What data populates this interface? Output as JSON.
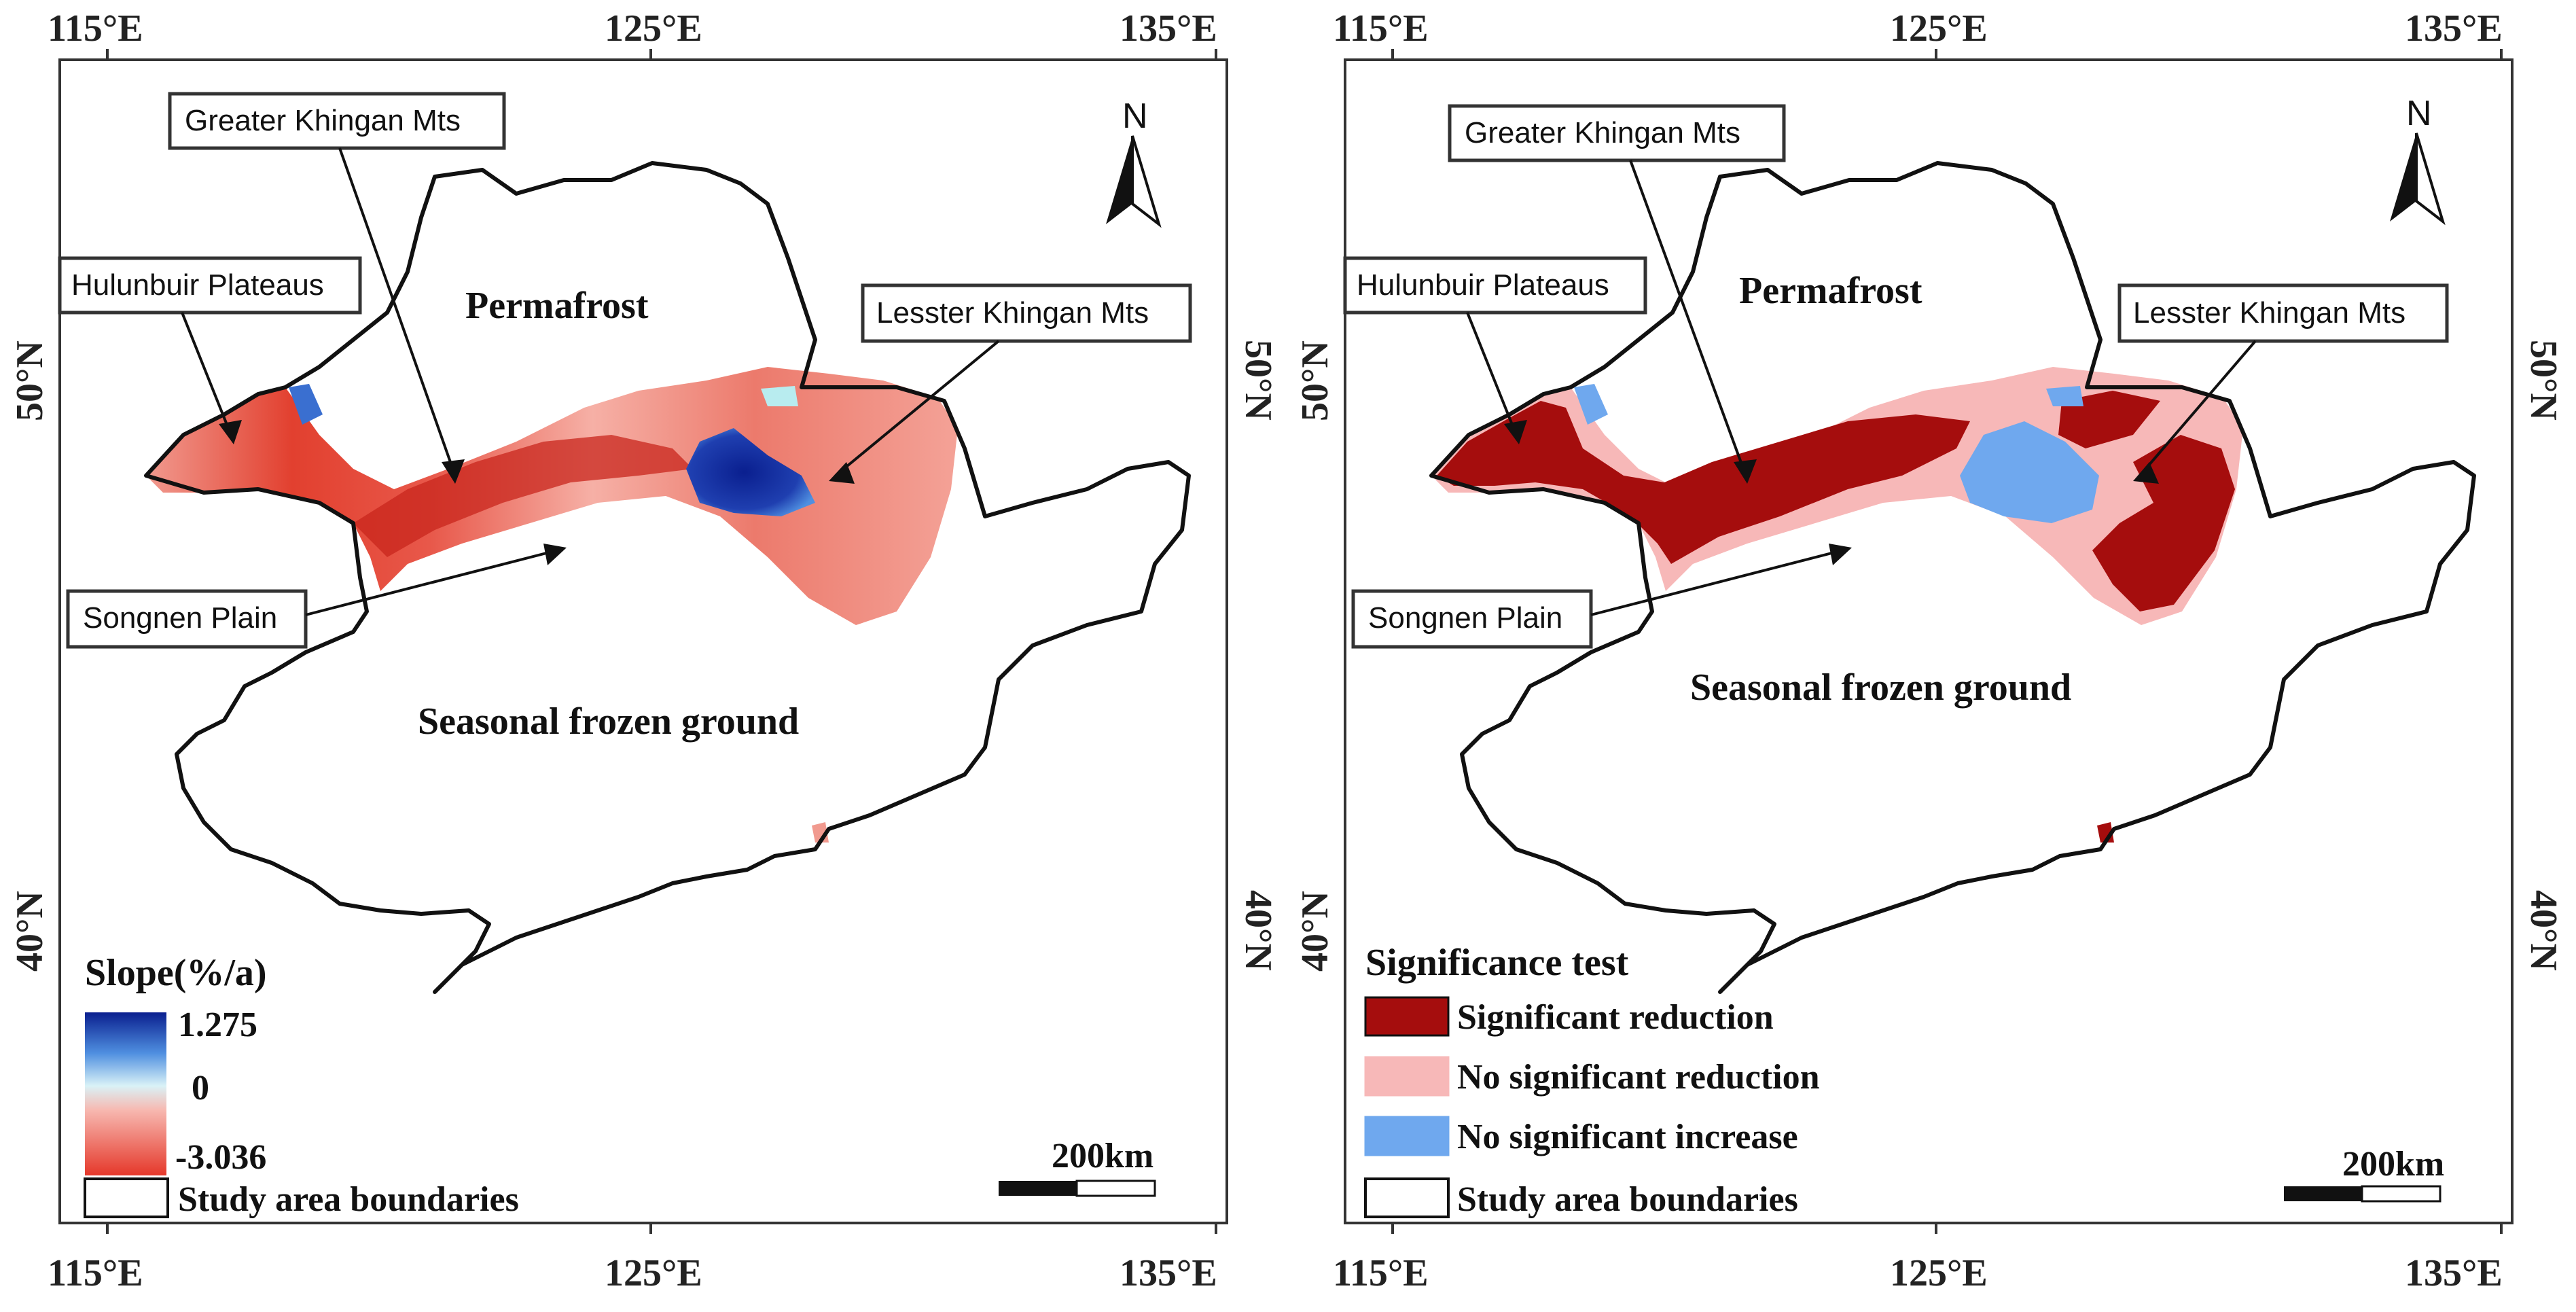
{
  "maps": [
    {
      "id": "slope",
      "ticks": {
        "top": [
          "115°E",
          "125°E",
          "135°E"
        ],
        "bottom": [
          "115°E",
          "125°E",
          "135°E"
        ],
        "left": [
          "50°N",
          "40°N"
        ],
        "right": [
          "50°N",
          "40°N"
        ]
      },
      "callouts": {
        "greater_khingan": "Greater Khingan Mts",
        "hulunbuir": "Hulunbuir Plateaus",
        "lesster_khingan": "Lesster Khingan Mts",
        "songnen": "Songnen Plain"
      },
      "regions": {
        "permafrost": "Permafrost",
        "seasonal": "Seasonal frozen ground"
      },
      "north_label": "N",
      "legend": {
        "title": "Slope(%/a)",
        "max_label": "1.275",
        "mid_label": "0",
        "min_label": "-3.036",
        "max_value": 1.275,
        "mid_value": 0,
        "min_value": -3.036,
        "boundary_label": "Study area boundaries"
      },
      "scale_label": "200km",
      "colors": {
        "high": "#0a1f8f",
        "mid_high": "#4f8fe0",
        "zero": "#d9f2f7",
        "mid_low": "#f7b8b0",
        "low": "#e5382a"
      }
    },
    {
      "id": "significance",
      "ticks": {
        "top": [
          "115°E",
          "125°E",
          "135°E"
        ],
        "bottom": [
          "115°E",
          "125°E",
          "135°E"
        ],
        "left": [
          "50°N",
          "40°N"
        ],
        "right": [
          "50°N",
          "40°N"
        ]
      },
      "callouts": {
        "greater_khingan": "Greater Khingan Mts",
        "hulunbuir": "Hulunbuir Plateaus",
        "lesster_khingan": "Lesster Khingan Mts",
        "songnen": "Songnen Plain"
      },
      "regions": {
        "permafrost": "Permafrost",
        "seasonal": "Seasonal frozen ground"
      },
      "north_label": "N",
      "legend": {
        "title": "Significance test",
        "items": [
          {
            "label": "Significant reduction",
            "color": "#a50d0d"
          },
          {
            "label": "No significant reduction",
            "color": "#f7b8b8"
          },
          {
            "label": "No significant increase",
            "color": "#6fa8ee"
          }
        ],
        "boundary_label": "Study area boundaries"
      },
      "scale_label": "200km"
    }
  ]
}
